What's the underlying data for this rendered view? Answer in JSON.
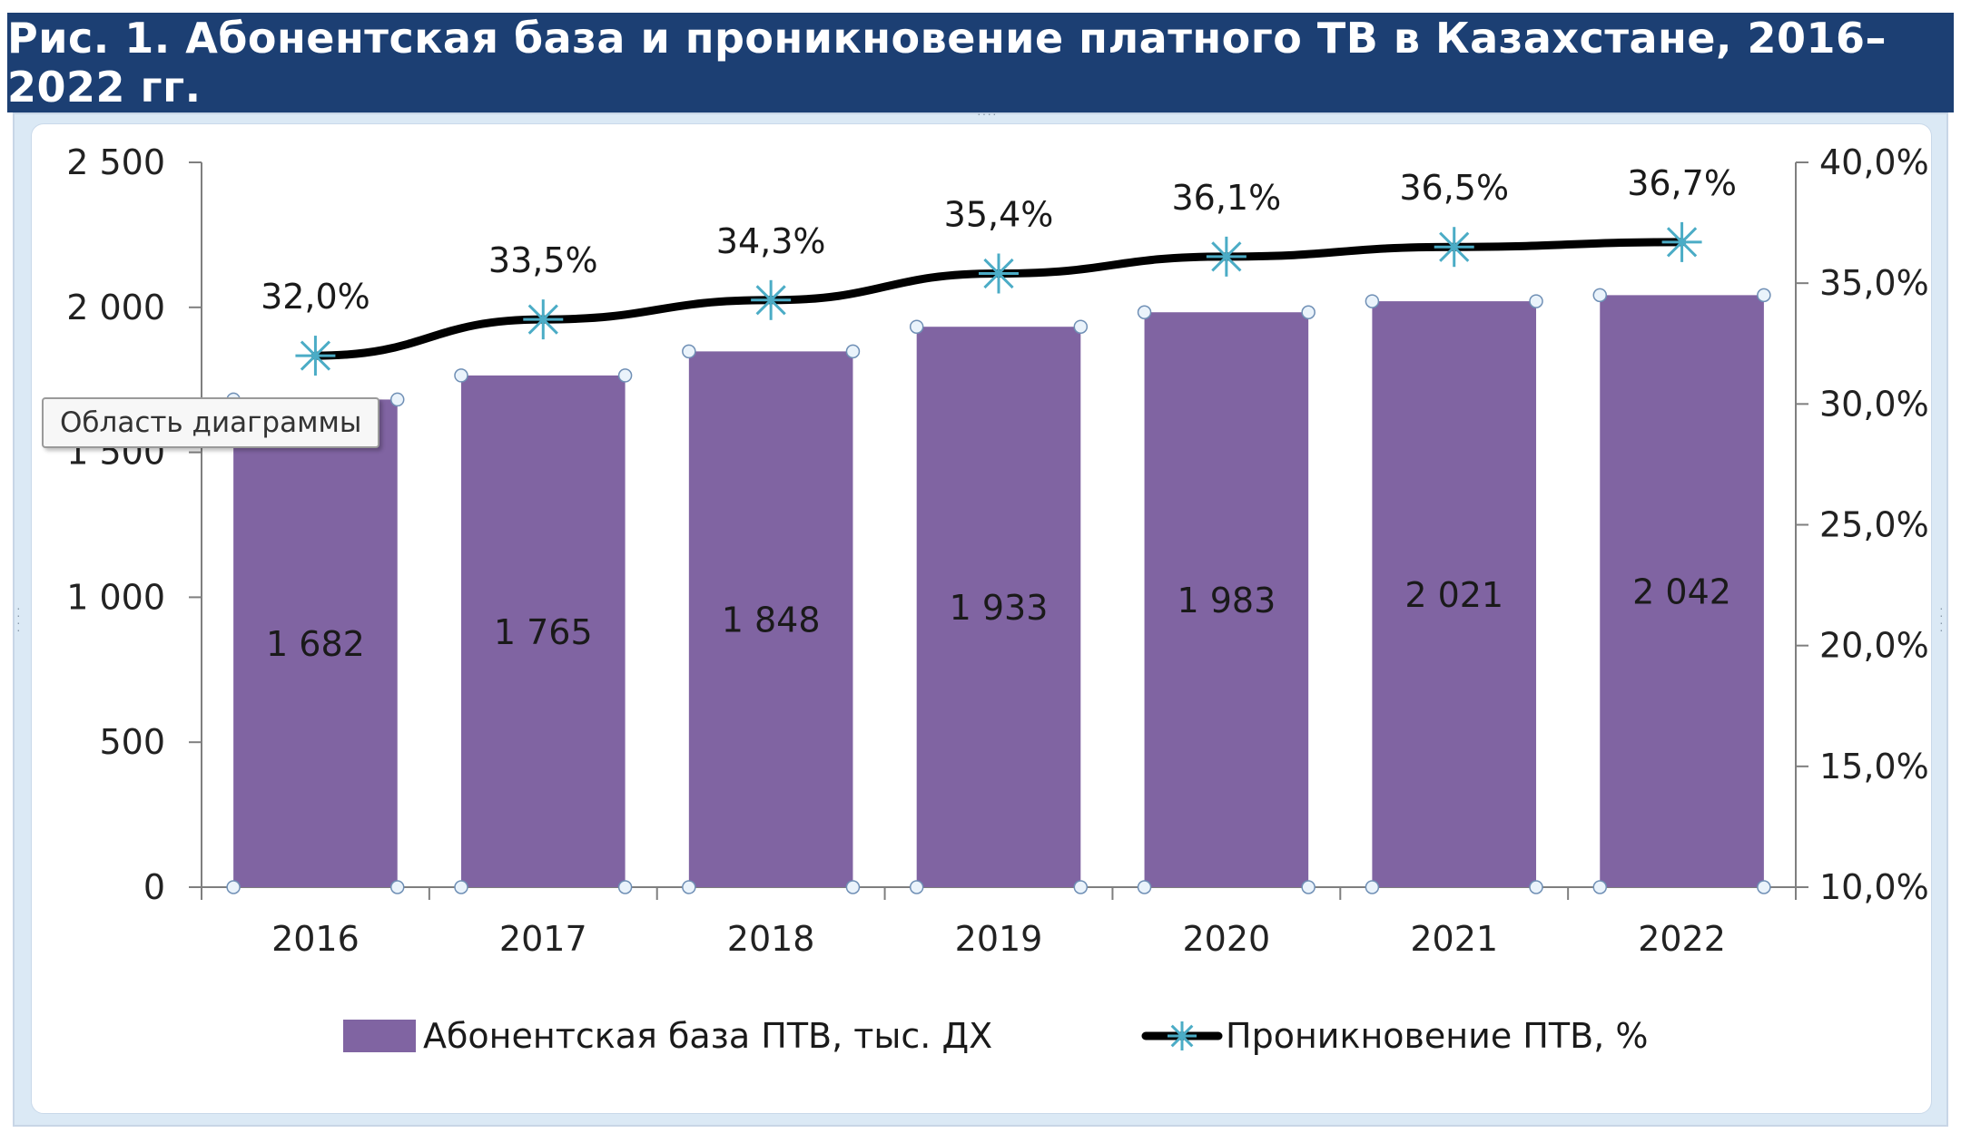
{
  "title": "Рис. 1. Абонентская база и проникновение платного ТВ в Казахстане, 2016–2022 гг.",
  "tooltip": "Область диаграммы",
  "colors": {
    "bar": "#8064a2",
    "line": "#000000",
    "marker": "#4bacc6",
    "title_bg": "#1c3f73"
  },
  "chart_data": {
    "type": "bar",
    "categories": [
      "2016",
      "2017",
      "2018",
      "2019",
      "2020",
      "2021",
      "2022"
    ],
    "series": [
      {
        "name": "Абонентская база ПТВ, тыс. ДХ",
        "type": "bar",
        "axis": "left",
        "values": [
          1682,
          1765,
          1848,
          1933,
          1983,
          2021,
          2042
        ],
        "labels": [
          "1 682",
          "1 765",
          "1 848",
          "1 933",
          "1 983",
          "2 021",
          "2 042"
        ]
      },
      {
        "name": "Проникновение ПТВ, %",
        "type": "line",
        "axis": "right",
        "values": [
          32.0,
          33.5,
          34.3,
          35.4,
          36.1,
          36.5,
          36.7
        ],
        "labels": [
          "32,0%",
          "33,5%",
          "34,3%",
          "35,4%",
          "36,1%",
          "36,5%",
          "36,7%"
        ]
      }
    ],
    "y_left": {
      "ylim": [
        0,
        2500
      ],
      "ticks": [
        0,
        500,
        1000,
        1500,
        2000,
        2500
      ],
      "tick_labels": [
        "0",
        "500",
        "1 000",
        "1 500",
        "2 000",
        "2 500"
      ]
    },
    "y_right": {
      "ylim": [
        10,
        40
      ],
      "ticks": [
        10,
        15,
        20,
        25,
        30,
        35,
        40
      ],
      "tick_labels": [
        "10,0%",
        "15,0%",
        "20,0%",
        "25,0%",
        "30,0%",
        "35,0%",
        "40,0%"
      ]
    },
    "legend_position": "bottom",
    "grid": false
  }
}
